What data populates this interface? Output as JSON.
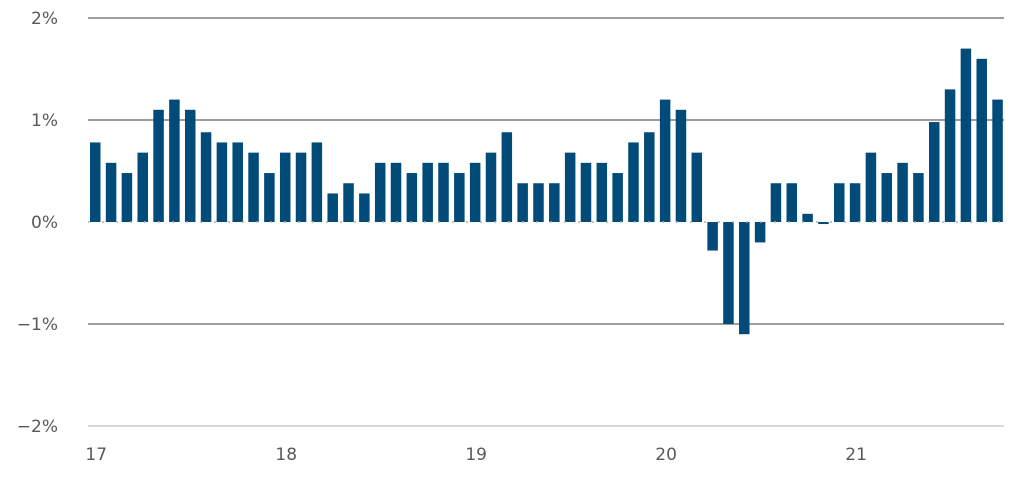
{
  "chart_data": {
    "type": "bar",
    "title": "",
    "xlabel": "",
    "ylabel": "",
    "ylim": [
      -2,
      2
    ],
    "y_ticks": [
      {
        "value": 2,
        "label": "2%"
      },
      {
        "value": 1,
        "label": "1%"
      },
      {
        "value": 0,
        "label": "0%"
      },
      {
        "value": -1,
        "label": "−1%"
      },
      {
        "value": -2,
        "label": "−2%"
      }
    ],
    "x_ticks": [
      {
        "index": 0,
        "label": "17"
      },
      {
        "index": 12,
        "label": "18"
      },
      {
        "index": 24,
        "label": "19"
      },
      {
        "index": 36,
        "label": "20"
      },
      {
        "index": 48,
        "label": "21"
      }
    ],
    "grid": true,
    "colors": {
      "bar": "#004b78",
      "grid": "#7f7f7f",
      "axis": "#c9c9dc",
      "zero": "#b0b0b0"
    },
    "values": [
      0.78,
      0.58,
      0.48,
      0.68,
      1.1,
      1.2,
      1.1,
      0.88,
      0.78,
      0.78,
      0.68,
      0.48,
      0.68,
      0.68,
      0.78,
      0.28,
      0.38,
      0.28,
      0.58,
      0.58,
      0.48,
      0.58,
      0.58,
      0.48,
      0.58,
      0.68,
      0.88,
      0.38,
      0.38,
      0.38,
      0.68,
      0.58,
      0.58,
      0.48,
      0.78,
      0.88,
      1.2,
      1.1,
      0.68,
      -0.28,
      -1.0,
      -1.1,
      -0.2,
      0.38,
      0.38,
      0.08,
      -0.02,
      0.38,
      0.38,
      0.68,
      0.48,
      0.58,
      0.48,
      0.98,
      1.3,
      1.7,
      1.6,
      1.2
    ]
  }
}
